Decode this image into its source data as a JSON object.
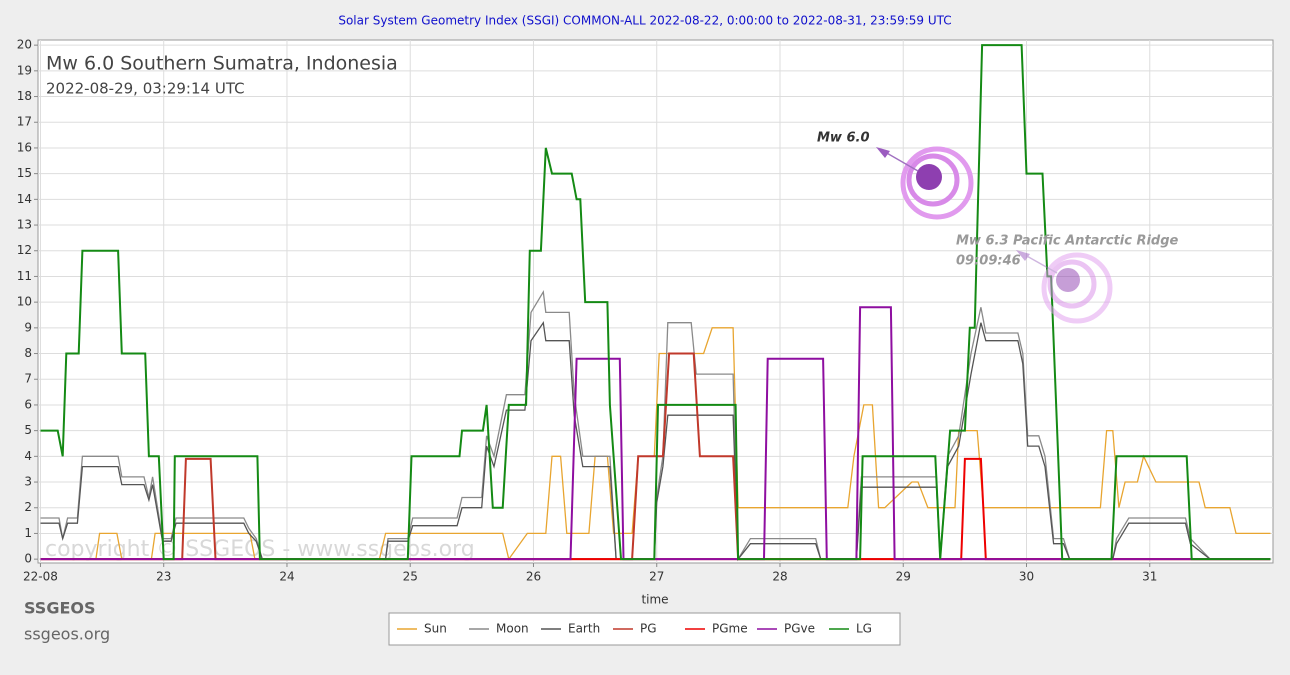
{
  "chart_data": {
    "type": "line",
    "title": "Solar System Geometry Index (SSGI) COMMON-ALL 2022-08-22,  0:00:00 to 2022-08-31, 23:59:59 UTC",
    "heading": "Mw 6.0 Southern Sumatra, Indonesia",
    "heading_time": "2022-08-29, 03:29:14 UTC",
    "annotations": [
      "Mw 6.0",
      "Mw 6.3 Pacific Antarctic Ridge",
      "09:09:46"
    ],
    "watermark": "copyright © SSGEOS - www.ssgeos.org",
    "xlabel": "time",
    "xlim": [
      21.98,
      32
    ],
    "xticks": [
      {
        "value": 22,
        "label": "22-08"
      },
      23,
      24,
      25,
      26,
      27,
      28,
      29,
      30,
      31
    ],
    "ylim": [
      -0.15,
      20.2
    ],
    "yticks": [
      0,
      1,
      2,
      3,
      4,
      5,
      6,
      7,
      8,
      9,
      10,
      11,
      12,
      13,
      14,
      15,
      16,
      17,
      18,
      19,
      20
    ],
    "grid": true,
    "legend": "bottom",
    "series": [
      {
        "name": "Sun",
        "color": "#e8a530",
        "x": [
          22,
          22.45,
          22.48,
          22.62,
          22.66,
          22.9,
          22.93,
          23.7,
          23.74,
          24.75,
          24.8,
          25.75,
          25.8,
          25.95,
          26.1,
          26.15,
          26.22,
          26.27,
          26.45,
          26.5,
          26.6,
          26.65,
          26.8,
          26.85,
          26.98,
          27.02,
          27.38,
          27.45,
          27.62,
          27.66,
          28.55,
          28.6,
          28.68,
          28.75,
          28.8,
          28.85,
          29.07,
          29.12,
          29.2,
          29.42,
          29.45,
          29.6,
          29.65,
          30.6,
          30.65,
          30.7,
          30.75,
          30.8,
          30.9,
          30.95,
          31.05,
          31.4,
          31.45,
          31.65,
          31.7,
          31.98
        ],
        "values": [
          0,
          0,
          1,
          1,
          0,
          0,
          1,
          1,
          0,
          0,
          1,
          1,
          0,
          1,
          1,
          4,
          4,
          1,
          1,
          4,
          4,
          1,
          1,
          4,
          4,
          8,
          8,
          9,
          9,
          2,
          2,
          4,
          6,
          6,
          2,
          2,
          3,
          3,
          2,
          2,
          5,
          5,
          2,
          2,
          5,
          5,
          2,
          3,
          3,
          4,
          3,
          3,
          2,
          2,
          1,
          1
        ]
      },
      {
        "name": "Moon",
        "color": "#8a8a8a",
        "x": [
          22,
          22.15,
          22.18,
          22.22,
          22.3,
          22.34,
          22.63,
          22.66,
          22.84,
          22.88,
          22.91,
          22.99,
          23.06,
          23.1,
          23.65,
          23.69,
          23.75,
          23.8,
          24.8,
          24.82,
          24.98,
          25.02,
          25.38,
          25.42,
          25.58,
          25.62,
          25.68,
          25.78,
          25.93,
          25.98,
          26.08,
          26.1,
          26.29,
          26.33,
          26.4,
          26.62,
          26.67,
          26.98,
          27,
          27.05,
          27.09,
          27.28,
          27.32,
          27.62,
          27.66,
          27.76,
          28.29,
          28.33,
          28.62,
          28.66,
          29.27,
          29.3,
          29.36,
          29.45,
          29.55,
          29.63,
          29.67,
          29.93,
          29.97,
          30.01,
          30.1,
          30.15,
          30.22,
          30.3,
          30.35,
          30.7,
          30.73,
          30.83,
          31.29,
          31.33,
          31.49,
          31.98
        ],
        "values": [
          1.6,
          1.6,
          0.8,
          1.6,
          1.6,
          4,
          4,
          3.2,
          3.2,
          2.4,
          3.2,
          0.8,
          0.8,
          1.6,
          1.6,
          1.2,
          0.8,
          0,
          0,
          0.8,
          0.8,
          1.6,
          1.6,
          2.4,
          2.4,
          4.8,
          4,
          6.4,
          6.4,
          9.6,
          10.4,
          9.6,
          9.6,
          6.4,
          4,
          4,
          0,
          0,
          2.4,
          4,
          9.2,
          9.2,
          7.2,
          7.2,
          0,
          0.8,
          0.8,
          0,
          0,
          3.2,
          3.2,
          0,
          4,
          4.8,
          8,
          9.8,
          8.8,
          8.8,
          8,
          4.8,
          4.8,
          4,
          0.8,
          0.8,
          0,
          0,
          0.8,
          1.6,
          1.6,
          0.8,
          0,
          0
        ]
      },
      {
        "name": "Earth",
        "color": "#555555",
        "x": [
          22,
          22.15,
          22.18,
          22.22,
          22.3,
          22.34,
          22.63,
          22.66,
          22.84,
          22.88,
          22.91,
          22.99,
          23.06,
          23.1,
          23.65,
          23.69,
          23.75,
          23.8,
          24.8,
          24.82,
          24.98,
          25.02,
          25.38,
          25.42,
          25.58,
          25.62,
          25.68,
          25.78,
          25.93,
          25.98,
          26.08,
          26.1,
          26.29,
          26.33,
          26.4,
          26.62,
          26.67,
          26.98,
          27,
          27.05,
          27.09,
          27.28,
          27.32,
          27.62,
          27.66,
          27.76,
          28.29,
          28.33,
          28.62,
          28.66,
          29.27,
          29.3,
          29.36,
          29.45,
          29.55,
          29.63,
          29.67,
          29.93,
          29.97,
          30.01,
          30.1,
          30.15,
          30.22,
          30.3,
          30.35,
          30.7,
          30.73,
          30.83,
          31.29,
          31.33,
          31.49,
          31.98
        ],
        "values": [
          1.4,
          1.4,
          0.8,
          1.4,
          1.4,
          3.6,
          3.6,
          2.9,
          2.9,
          2.3,
          2.9,
          0.7,
          0.7,
          1.4,
          1.4,
          1,
          0.7,
          0,
          0,
          0.7,
          0.7,
          1.3,
          1.3,
          2,
          2,
          4.4,
          3.6,
          5.8,
          5.8,
          8.5,
          9.2,
          8.5,
          8.5,
          5.6,
          3.6,
          3.6,
          0,
          0,
          2.2,
          3.6,
          5.6,
          5.6,
          5.6,
          5.6,
          0,
          0.6,
          0.6,
          0,
          0,
          2.8,
          2.8,
          0,
          3.6,
          4.4,
          7.2,
          9.2,
          8.5,
          8.5,
          7.6,
          4.4,
          4.4,
          3.6,
          0.6,
          0.6,
          0,
          0,
          0.6,
          1.4,
          1.4,
          0.6,
          0,
          0
        ]
      },
      {
        "name": "PG",
        "color": "#c0392b",
        "x": [
          22,
          23.15,
          23.18,
          23.38,
          23.42,
          26.8,
          26.85,
          27.05,
          27.1,
          27.3,
          27.35,
          27.62,
          27.66,
          31.98
        ],
        "values": [
          0,
          0,
          3.9,
          3.9,
          0,
          0,
          4,
          4,
          8,
          8,
          4,
          4,
          0,
          0
        ]
      },
      {
        "name": "PGme",
        "color": "#ee0000",
        "x": [
          22,
          29.47,
          29.5,
          29.63,
          29.67,
          31.98
        ],
        "values": [
          0,
          0,
          3.9,
          3.9,
          0,
          0
        ]
      },
      {
        "name": "PGve",
        "color": "#8e0ea0",
        "x": [
          22,
          26.3,
          26.35,
          26.7,
          26.73,
          27.87,
          27.9,
          28.35,
          28.38,
          28.62,
          28.65,
          28.9,
          28.93,
          31.98
        ],
        "values": [
          0,
          0,
          7.8,
          7.8,
          0,
          0,
          7.8,
          7.8,
          0,
          0,
          9.8,
          9.8,
          0,
          0
        ]
      },
      {
        "name": "LG",
        "color": "#148a14",
        "x": [
          22,
          22.14,
          22.18,
          22.21,
          22.31,
          22.34,
          22.63,
          22.66,
          22.85,
          22.88,
          22.96,
          23,
          23.08,
          23.09,
          23.76,
          23.78,
          24.98,
          25.01,
          25.4,
          25.42,
          25.59,
          25.62,
          25.67,
          25.75,
          25.8,
          25.94,
          25.97,
          26.06,
          26.1,
          26.15,
          26.31,
          26.35,
          26.38,
          26.42,
          26.6,
          26.62,
          26.71,
          26.98,
          27.01,
          27.64,
          27.66,
          28.65,
          28.67,
          29.26,
          29.3,
          29.38,
          29.5,
          29.54,
          29.58,
          29.64,
          29.96,
          30,
          30.13,
          30.17,
          30.2,
          30.29,
          30.69,
          30.73,
          31.3,
          31.34,
          31.98
        ],
        "values": [
          5,
          5,
          4,
          8,
          8,
          12,
          12,
          8,
          8,
          4,
          4,
          0,
          0,
          4,
          4,
          0,
          0,
          4,
          4,
          5,
          5,
          6,
          2,
          2,
          6,
          6,
          12,
          12,
          16,
          15,
          15,
          14,
          14,
          10,
          10,
          6,
          0,
          0,
          6,
          6,
          0,
          0,
          4,
          4,
          0,
          5,
          5,
          9,
          9,
          20,
          20,
          15,
          15,
          11,
          11,
          0,
          0,
          4,
          4,
          0,
          0
        ]
      }
    ]
  },
  "footer": {
    "name": "SSGEOS",
    "url": "ssgeos.org"
  }
}
